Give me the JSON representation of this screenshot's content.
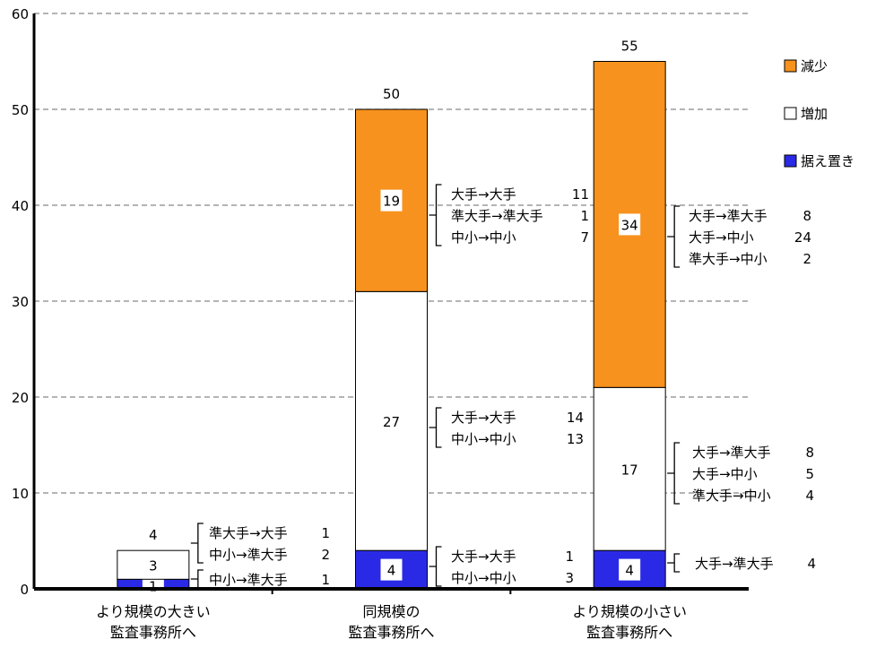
{
  "chart_data": {
    "type": "bar",
    "stacked": true,
    "categories": [
      "より規模の大きい\n監査事務所へ",
      "同規模の\n監査事務所へ",
      "より規模の小さい\n監査事務所へ"
    ],
    "series": [
      {
        "name": "据え置き",
        "color": "#2A2AE6",
        "values": [
          1,
          4,
          4
        ]
      },
      {
        "name": "増加",
        "color": "#FFFFFF",
        "values": [
          3,
          27,
          17
        ]
      },
      {
        "name": "減少",
        "color": "#F7921E",
        "values": [
          0,
          19,
          34
        ]
      }
    ],
    "totals": [
      4,
      50,
      55
    ],
    "ylim": [
      0,
      60
    ],
    "yticks": [
      0,
      10,
      20,
      30,
      40,
      50,
      60
    ],
    "grid": "dashed horizontal",
    "legend": "right",
    "legend_order": [
      "減少",
      "増加",
      "据え置き"
    ],
    "annotations": [
      {
        "bar": 0,
        "series": "増加",
        "lines": [
          {
            "label": "準大手→大手",
            "value": "1"
          },
          {
            "label": "中小→準大手",
            "value": "2"
          }
        ]
      },
      {
        "bar": 0,
        "series": "据え置き",
        "lines": [
          {
            "label": "中小→準大手",
            "value": "1"
          }
        ]
      },
      {
        "bar": 1,
        "series": "減少",
        "lines": [
          {
            "label": "大手→大手",
            "value": "11"
          },
          {
            "label": "準大手→準大手",
            "value": "1"
          },
          {
            "label": "中小→中小",
            "value": "7"
          }
        ]
      },
      {
        "bar": 1,
        "series": "増加",
        "lines": [
          {
            "label": "大手→大手",
            "value": "14"
          },
          {
            "label": "中小→中小",
            "value": "13"
          }
        ]
      },
      {
        "bar": 1,
        "series": "据え置き",
        "lines": [
          {
            "label": "大手→大手",
            "value": "1"
          },
          {
            "label": "中小→中小",
            "value": "3"
          }
        ]
      },
      {
        "bar": 2,
        "series": "減少",
        "lines": [
          {
            "label": "大手→準大手",
            "value": "8"
          },
          {
            "label": "大手→中小",
            "value": "24"
          },
          {
            "label": "準大手→中小",
            "value": "2"
          }
        ]
      },
      {
        "bar": 2,
        "series": "増加",
        "lines": [
          {
            "label": "大手→準大手",
            "value": "8"
          },
          {
            "label": "大手→中小",
            "value": "5"
          },
          {
            "label": "準大手→中小",
            "value": "4"
          }
        ]
      },
      {
        "bar": 2,
        "series": "据え置き",
        "lines": [
          {
            "label": "大手→準大手",
            "value": "4"
          }
        ]
      }
    ]
  }
}
